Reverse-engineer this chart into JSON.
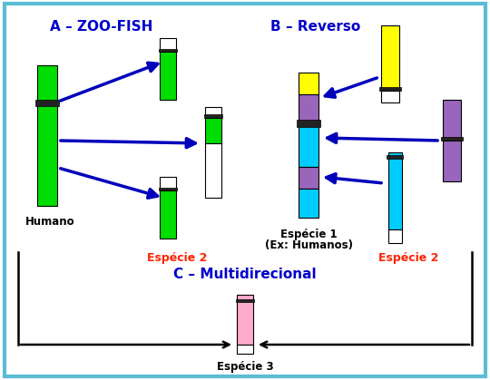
{
  "fig_width": 5.4,
  "fig_height": 4.19,
  "dpi": 100,
  "bg_color": "#ffffff",
  "border_color": "#5bbcd6",
  "title_a": "A – ZOO-FISH",
  "title_b": "B – Reverso",
  "title_c": "C – Multidirecional",
  "label_humano": "Humano",
  "label_especie2_a": "Espécie 2",
  "label_especie1": "Espécie 1",
  "label_ex_humanos": "(Ex: Humanos)",
  "label_especie2_b": "Espécie 2",
  "label_especie3": "Espécie 3",
  "arrow_color": "#0000bb",
  "title_color": "#0000cc",
  "red_label_color": "#ff2200",
  "black_label_color": "#000000",
  "green": "#00dd00",
  "yellow": "#ffff00",
  "cyan": "#00ccff",
  "purple": "#9966bb",
  "pink": "#ffaacc",
  "white_chrom": "#ffffff",
  "chrom_border": "#000000"
}
